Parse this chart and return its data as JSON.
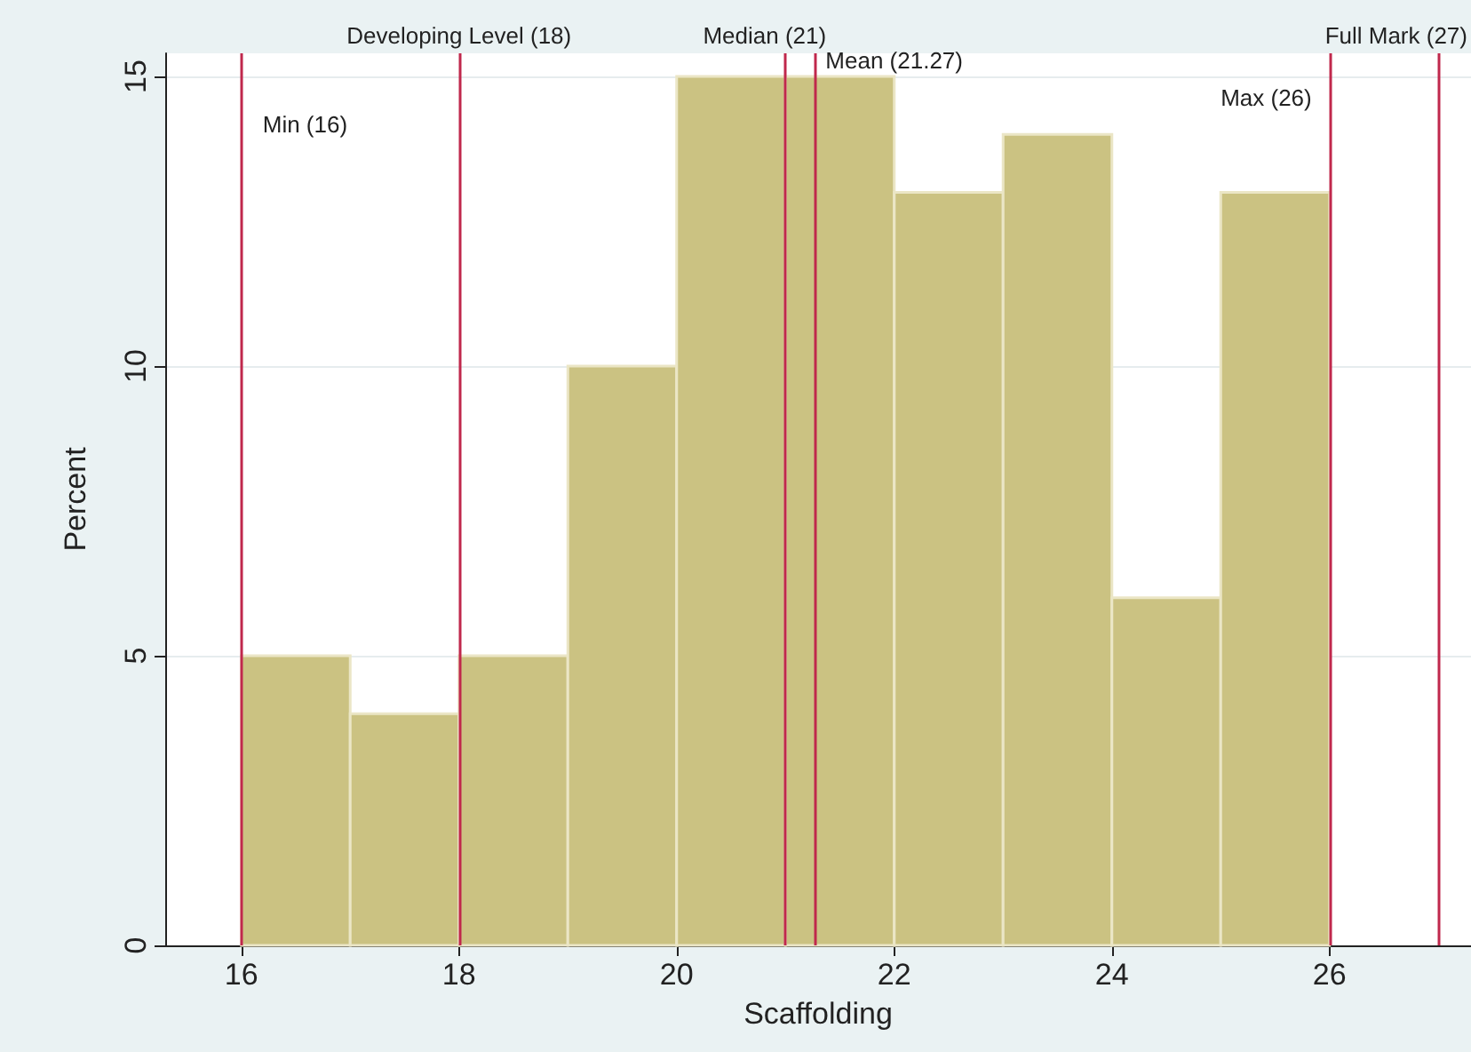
{
  "chart_data": {
    "type": "histogram",
    "xlabel": "Scaffolding",
    "ylabel": "Percent",
    "bins": [
      16,
      17,
      18,
      19,
      20,
      21,
      22,
      23,
      24,
      25,
      26
    ],
    "values": [
      5,
      4,
      5,
      10,
      15,
      15,
      13,
      14,
      6,
      13
    ],
    "color": "#cbc282",
    "xlim": [
      15.3,
      27.3
    ],
    "xticks": [
      16,
      18,
      20,
      22,
      24,
      26
    ],
    "ylim": [
      0,
      15.4
    ],
    "yticks": [
      0,
      5,
      10,
      15
    ],
    "grid": "y",
    "ref_lines": [
      {
        "axis": "x",
        "value": 16,
        "label": "Min (16)",
        "color": "#c0284c"
      },
      {
        "axis": "x",
        "value": 18,
        "label": "Developing Level (18)",
        "color": "#c0284c"
      },
      {
        "axis": "x",
        "value": 21,
        "label": "Median (21)",
        "color": "#c0284c"
      },
      {
        "axis": "x",
        "value": 21.27,
        "label": "Mean (21.27)",
        "color": "#c0284c"
      },
      {
        "axis": "x",
        "value": 26,
        "label": "Max (26)",
        "color": "#c0284c"
      },
      {
        "axis": "x",
        "value": 27,
        "label": "Full Mark (27)",
        "color": "#c0284c"
      }
    ]
  }
}
